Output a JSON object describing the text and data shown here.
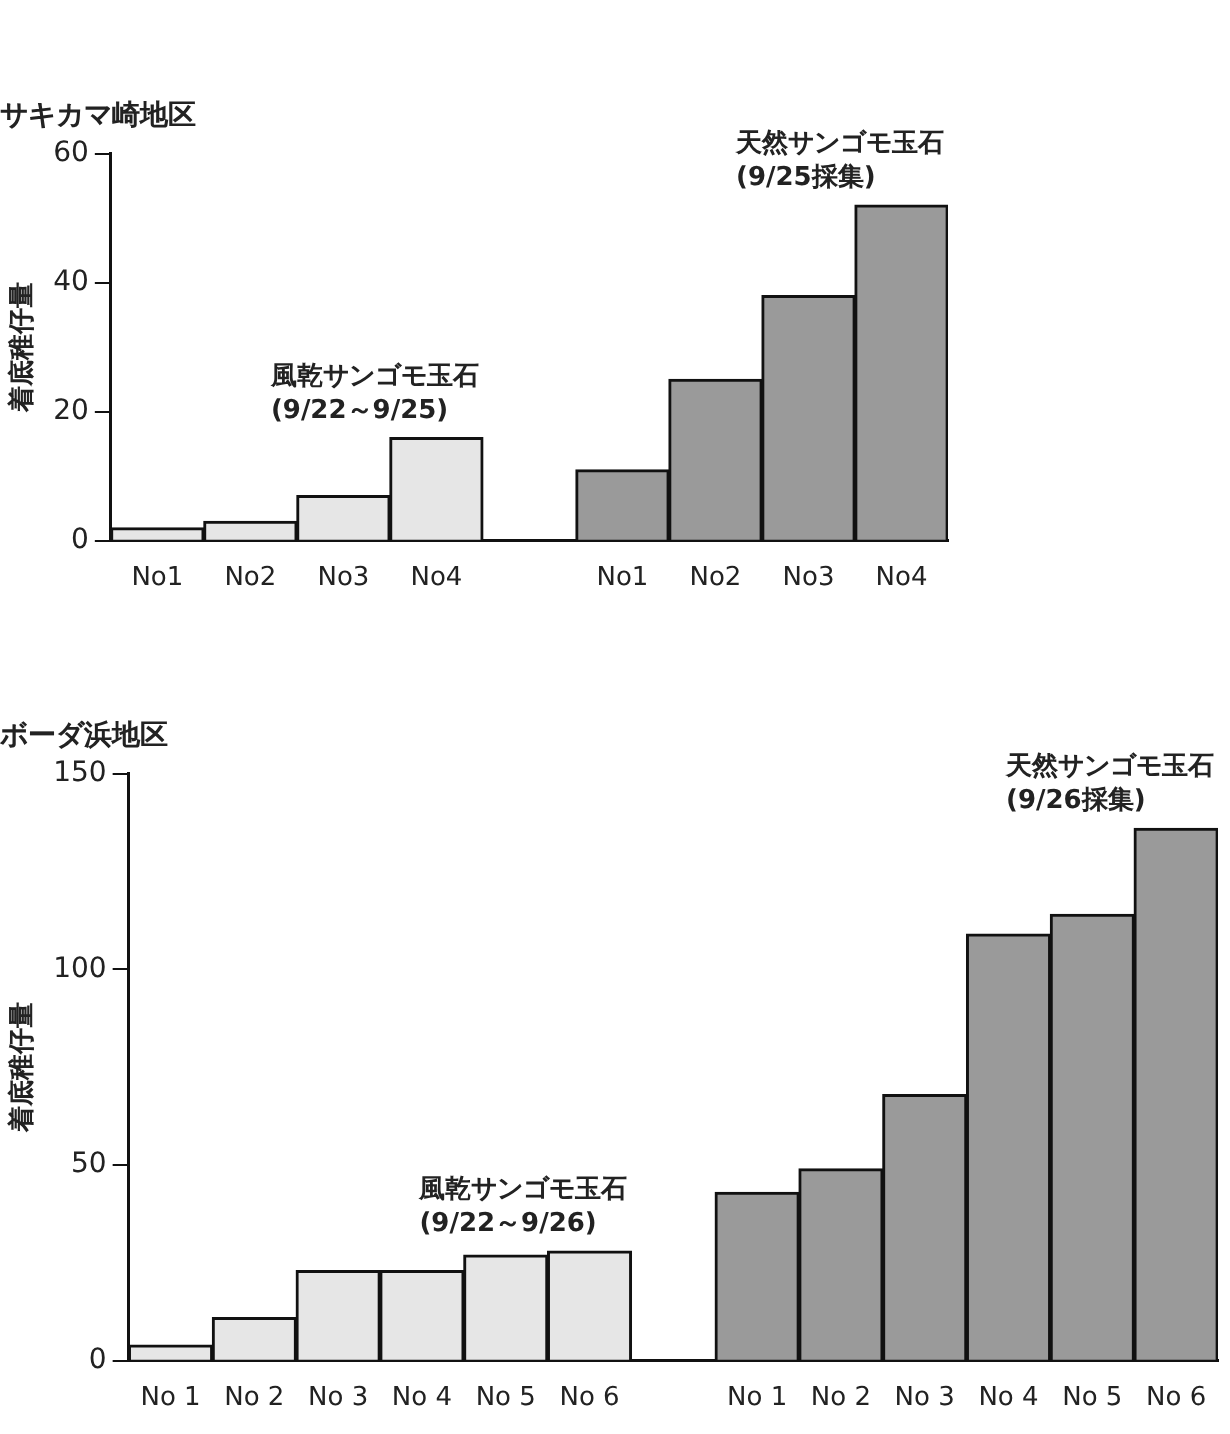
{
  "chart_data": [
    {
      "type": "bar",
      "title": "サキカマ崎地区",
      "ylabel": "着底稚仔量",
      "categories": [
        "No1",
        "No2",
        "No3",
        "No4",
        null,
        "No1",
        "No2",
        "No3",
        "No4"
      ],
      "series": [
        {
          "name": "風乾サンゴモ玉石 (9/22～9/25)",
          "color": "#e6e6e6",
          "values": [
            2,
            3,
            7,
            16,
            null,
            null,
            null,
            null,
            null
          ]
        },
        {
          "name": "天然サンゴモ玉石 (9/25採集)",
          "color": "#9a9a9a",
          "values": [
            null,
            null,
            null,
            null,
            null,
            11,
            25,
            38,
            52
          ]
        }
      ],
      "ylim": [
        0,
        60
      ],
      "yticks": [
        0,
        20,
        40,
        60
      ],
      "grid": false,
      "legend": false
    },
    {
      "type": "bar",
      "title": "ボーダ浜地区",
      "ylabel": "着底稚仔量",
      "categories": [
        "No 1",
        "No 2",
        "No 3",
        "No 4",
        "No 5",
        "No 6",
        null,
        "No 1",
        "No 2",
        "No 3",
        "No 4",
        "No 5",
        "No 6"
      ],
      "series": [
        {
          "name": "風乾サンゴモ玉石 (9/22～9/26)",
          "color": "#e6e6e6",
          "values": [
            4,
            11,
            23,
            23,
            27,
            28,
            null,
            null,
            null,
            null,
            null,
            null,
            null
          ]
        },
        {
          "name": "天然サンゴモ玉石 (9/26採集)",
          "color": "#9a9a9a",
          "values": [
            null,
            null,
            null,
            null,
            null,
            null,
            null,
            43,
            49,
            68,
            109,
            114,
            136
          ]
        }
      ],
      "ylim": [
        0,
        150
      ],
      "yticks": [
        0,
        50,
        100,
        150
      ],
      "grid": false,
      "legend": false
    }
  ]
}
